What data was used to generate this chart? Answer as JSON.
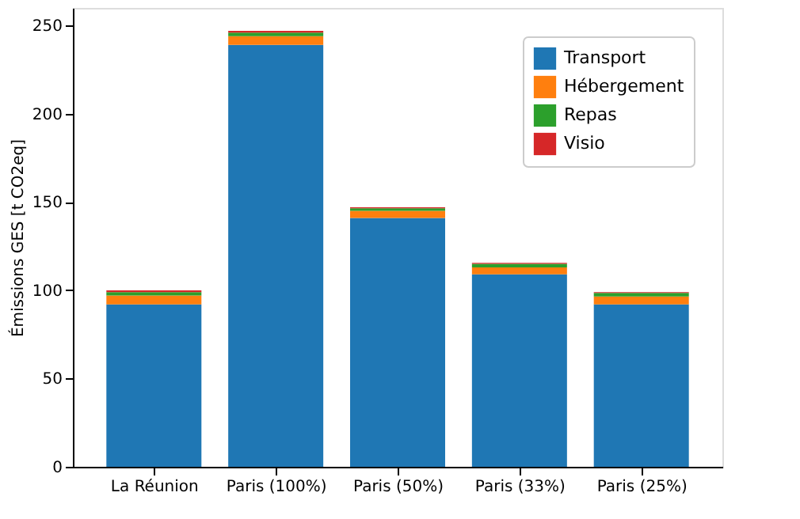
{
  "chart_data": {
    "type": "bar",
    "stacked": true,
    "ylabel": "Émissions GES [t CO2eq]",
    "categories": [
      "La Réunion",
      "Paris (100%)",
      "Paris (50%)",
      "Paris (33%)",
      "Paris (25%)"
    ],
    "series": [
      {
        "name": "Transport",
        "color": "#1f77b4",
        "values": [
          92,
          239,
          141,
          109,
          92
        ]
      },
      {
        "name": "Hébergement",
        "color": "#ff7f0e",
        "values": [
          5,
          5,
          4,
          4,
          4.5
        ]
      },
      {
        "name": "Repas",
        "color": "#2ca02c",
        "values": [
          2,
          2,
          1.5,
          2,
          2
        ]
      },
      {
        "name": "Visio",
        "color": "#d62728",
        "values": [
          1,
          1,
          0.5,
          0.5,
          0.5
        ]
      }
    ],
    "ylim": [
      0,
      260
    ],
    "yticks": [
      0,
      50,
      100,
      150,
      200,
      250
    ],
    "grid": false,
    "legend": "top right"
  }
}
